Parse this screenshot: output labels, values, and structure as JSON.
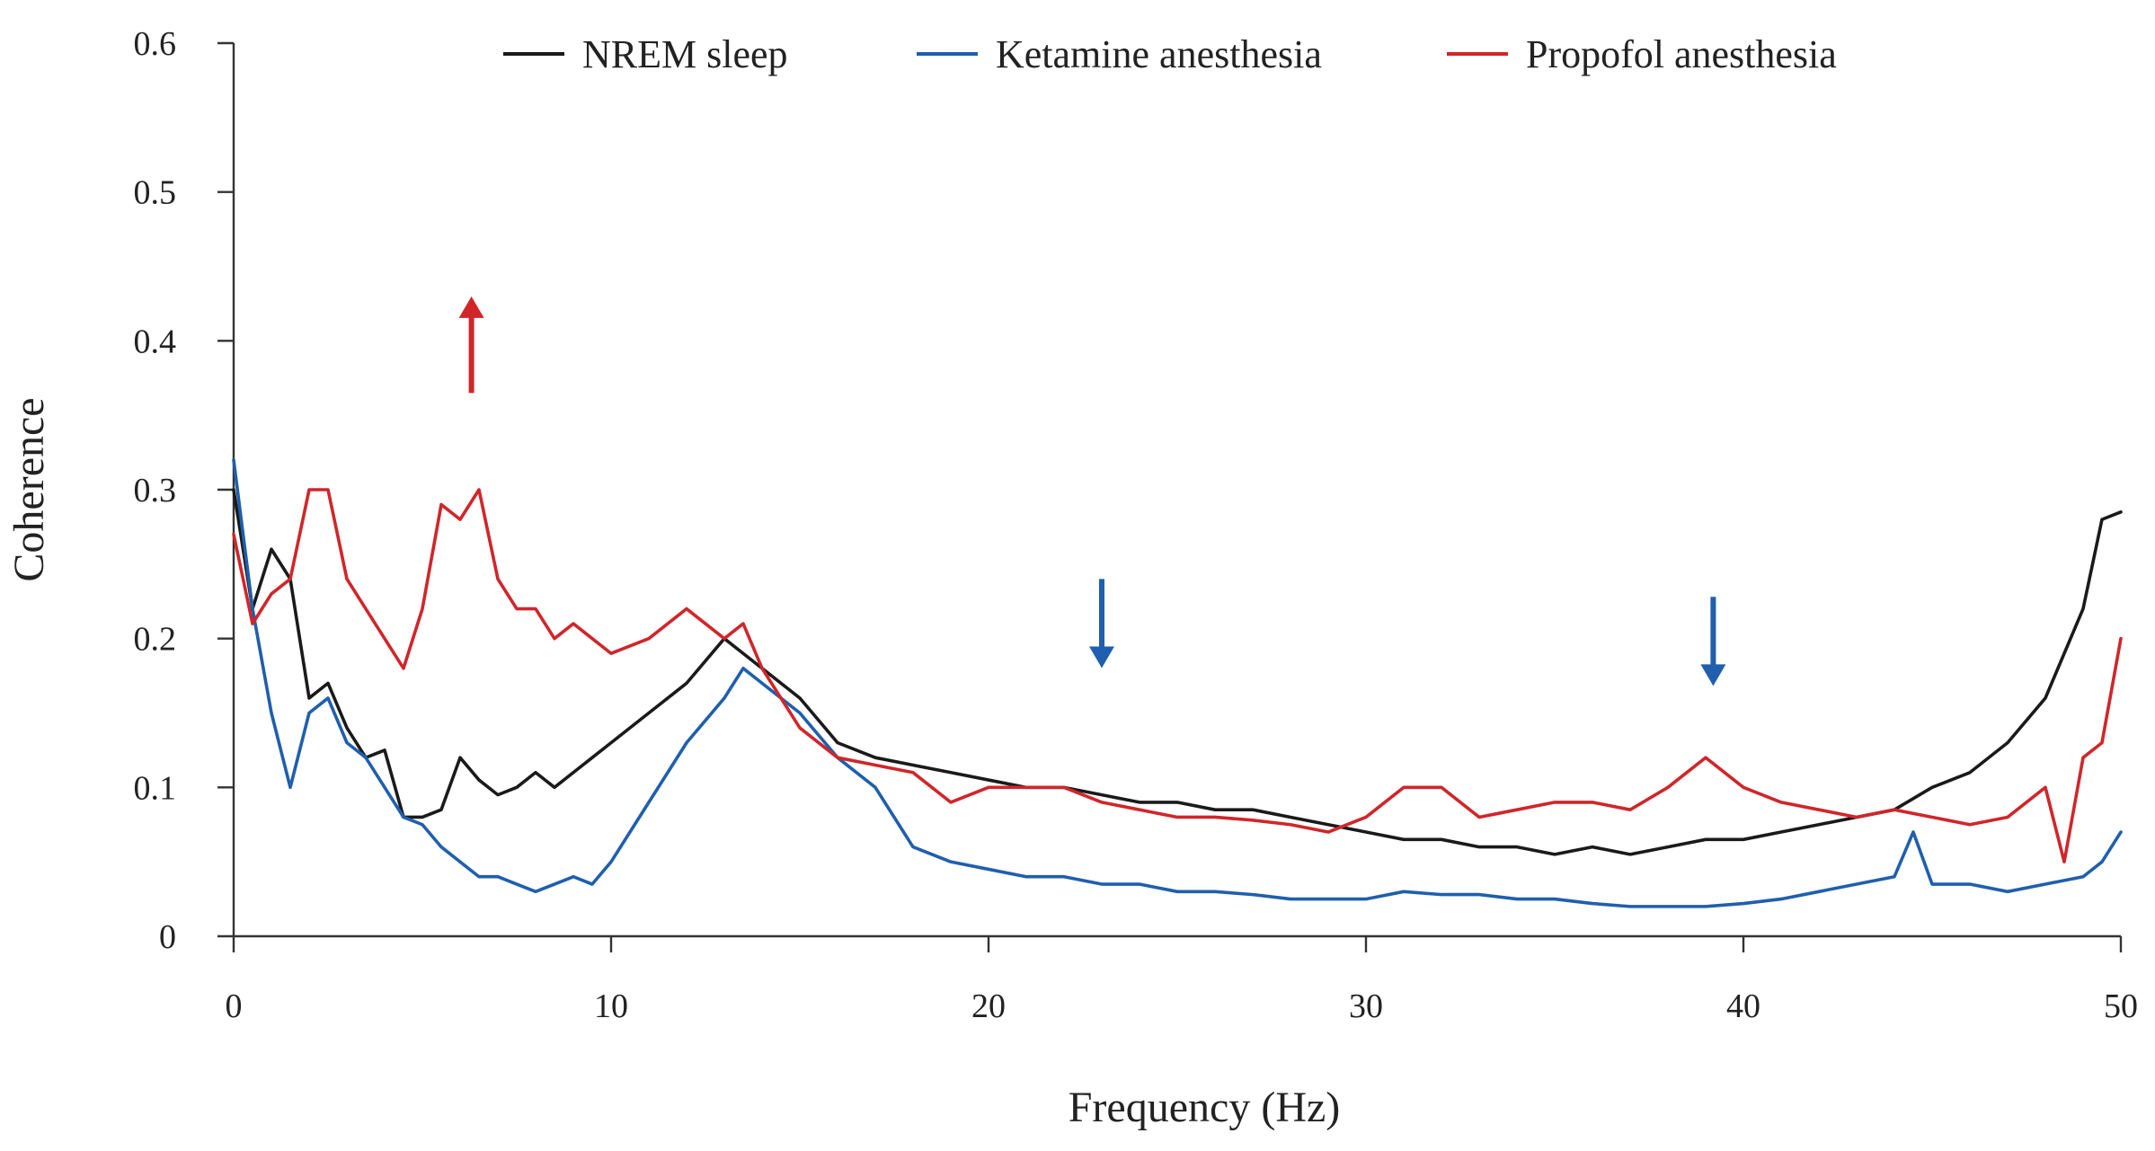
{
  "chart_data": {
    "type": "line",
    "title": "",
    "xlabel": "Frequency (Hz)",
    "ylabel": "Coherence",
    "xlim": [
      0,
      50
    ],
    "ylim": [
      0,
      0.6
    ],
    "xticks": [
      {
        "value": 0,
        "label": "0"
      },
      {
        "value": 10,
        "label": "10"
      },
      {
        "value": 20,
        "label": "20"
      },
      {
        "value": 30,
        "label": "30"
      },
      {
        "value": 40,
        "label": "40"
      },
      {
        "value": 50,
        "label": "50"
      }
    ],
    "yticks": [
      {
        "value": 0,
        "label": "0"
      },
      {
        "value": 0.1,
        "label": "0.1"
      },
      {
        "value": 0.2,
        "label": "0.2"
      },
      {
        "value": 0.3,
        "label": "0.3"
      },
      {
        "value": 0.4,
        "label": "0.4"
      },
      {
        "value": 0.5,
        "label": "0.5"
      },
      {
        "value": 0.6,
        "label": "0.6"
      }
    ],
    "grid": false,
    "legend_position": "top",
    "series": [
      {
        "name": "NREM sleep",
        "color": "#1a1a1a",
        "x": [
          0,
          0.5,
          1,
          1.5,
          2,
          2.5,
          3,
          3.5,
          4,
          4.5,
          5,
          5.5,
          6,
          6.5,
          7,
          7.5,
          8,
          8.5,
          9,
          9.5,
          10,
          11,
          12,
          13,
          13.5,
          14,
          15,
          16,
          17,
          18,
          19,
          20,
          21,
          22,
          23,
          24,
          25,
          26,
          27,
          28,
          29,
          30,
          31,
          32,
          33,
          34,
          35,
          36,
          37,
          38,
          39,
          40,
          41,
          42,
          43,
          44,
          45,
          46,
          47,
          48,
          49,
          49.5,
          50
        ],
        "y": [
          0.3,
          0.22,
          0.26,
          0.24,
          0.16,
          0.17,
          0.14,
          0.12,
          0.125,
          0.08,
          0.08,
          0.085,
          0.12,
          0.105,
          0.095,
          0.1,
          0.11,
          0.1,
          0.11,
          0.12,
          0.13,
          0.15,
          0.17,
          0.2,
          0.19,
          0.18,
          0.16,
          0.13,
          0.12,
          0.115,
          0.11,
          0.105,
          0.1,
          0.1,
          0.095,
          0.09,
          0.09,
          0.085,
          0.085,
          0.08,
          0.075,
          0.07,
          0.065,
          0.065,
          0.06,
          0.06,
          0.055,
          0.06,
          0.055,
          0.06,
          0.065,
          0.065,
          0.07,
          0.075,
          0.08,
          0.085,
          0.1,
          0.11,
          0.13,
          0.16,
          0.22,
          0.28,
          0.285
        ]
      },
      {
        "name": "Ketamine anesthesia",
        "color": "#1f5fad",
        "x": [
          0,
          0.5,
          1,
          1.5,
          2,
          2.5,
          3,
          3.5,
          4,
          4.5,
          5,
          5.5,
          6,
          6.5,
          7,
          7.5,
          8,
          8.5,
          9,
          9.5,
          10,
          11,
          12,
          13,
          13.5,
          14,
          15,
          16,
          17,
          18,
          19,
          20,
          21,
          22,
          23,
          24,
          25,
          26,
          27,
          28,
          29,
          30,
          31,
          32,
          33,
          34,
          35,
          36,
          37,
          38,
          39,
          40,
          41,
          42,
          43,
          44,
          44.5,
          45,
          46,
          47,
          48,
          49,
          49.5,
          50
        ],
        "y": [
          0.32,
          0.22,
          0.15,
          0.1,
          0.15,
          0.16,
          0.13,
          0.12,
          0.1,
          0.08,
          0.075,
          0.06,
          0.05,
          0.04,
          0.04,
          0.035,
          0.03,
          0.035,
          0.04,
          0.035,
          0.05,
          0.09,
          0.13,
          0.16,
          0.18,
          0.17,
          0.15,
          0.12,
          0.1,
          0.06,
          0.05,
          0.045,
          0.04,
          0.04,
          0.035,
          0.035,
          0.03,
          0.03,
          0.028,
          0.025,
          0.025,
          0.025,
          0.03,
          0.028,
          0.028,
          0.025,
          0.025,
          0.022,
          0.02,
          0.02,
          0.02,
          0.022,
          0.025,
          0.03,
          0.035,
          0.04,
          0.07,
          0.035,
          0.035,
          0.03,
          0.035,
          0.04,
          0.05,
          0.07
        ]
      },
      {
        "name": "Propofol anesthesia",
        "color": "#d0262a",
        "x": [
          0,
          0.5,
          1,
          1.5,
          2,
          2.5,
          3,
          3.5,
          4,
          4.5,
          5,
          5.5,
          6,
          6.5,
          7,
          7.5,
          8,
          8.5,
          9,
          9.5,
          10,
          11,
          12,
          13,
          13.5,
          14,
          15,
          16,
          17,
          18,
          19,
          20,
          21,
          22,
          23,
          24,
          25,
          26,
          27,
          28,
          29,
          30,
          31,
          32,
          33,
          34,
          35,
          36,
          37,
          38,
          39,
          40,
          41,
          42,
          43,
          44,
          45,
          46,
          47,
          48,
          48.5,
          49,
          49.5,
          50
        ],
        "y": [
          0.27,
          0.21,
          0.23,
          0.24,
          0.3,
          0.3,
          0.24,
          0.22,
          0.2,
          0.18,
          0.22,
          0.29,
          0.28,
          0.3,
          0.24,
          0.22,
          0.22,
          0.2,
          0.21,
          0.2,
          0.19,
          0.2,
          0.22,
          0.2,
          0.21,
          0.18,
          0.14,
          0.12,
          0.115,
          0.11,
          0.09,
          0.1,
          0.1,
          0.1,
          0.09,
          0.085,
          0.08,
          0.08,
          0.078,
          0.075,
          0.07,
          0.08,
          0.1,
          0.1,
          0.08,
          0.085,
          0.09,
          0.09,
          0.085,
          0.1,
          0.12,
          0.1,
          0.09,
          0.085,
          0.08,
          0.085,
          0.08,
          0.075,
          0.08,
          0.1,
          0.05,
          0.12,
          0.13,
          0.2
        ]
      }
    ],
    "annotations": [
      {
        "type": "arrow-up",
        "x": 6.3,
        "y_from": 0.365,
        "y_to": 0.425,
        "color": "#d0262a"
      },
      {
        "type": "arrow-down",
        "x": 23,
        "y_from": 0.24,
        "y_to": 0.185,
        "color": "#1f5fad"
      },
      {
        "type": "arrow-down",
        "x": 39.2,
        "y_from": 0.228,
        "y_to": 0.173,
        "color": "#1f5fad"
      }
    ]
  }
}
